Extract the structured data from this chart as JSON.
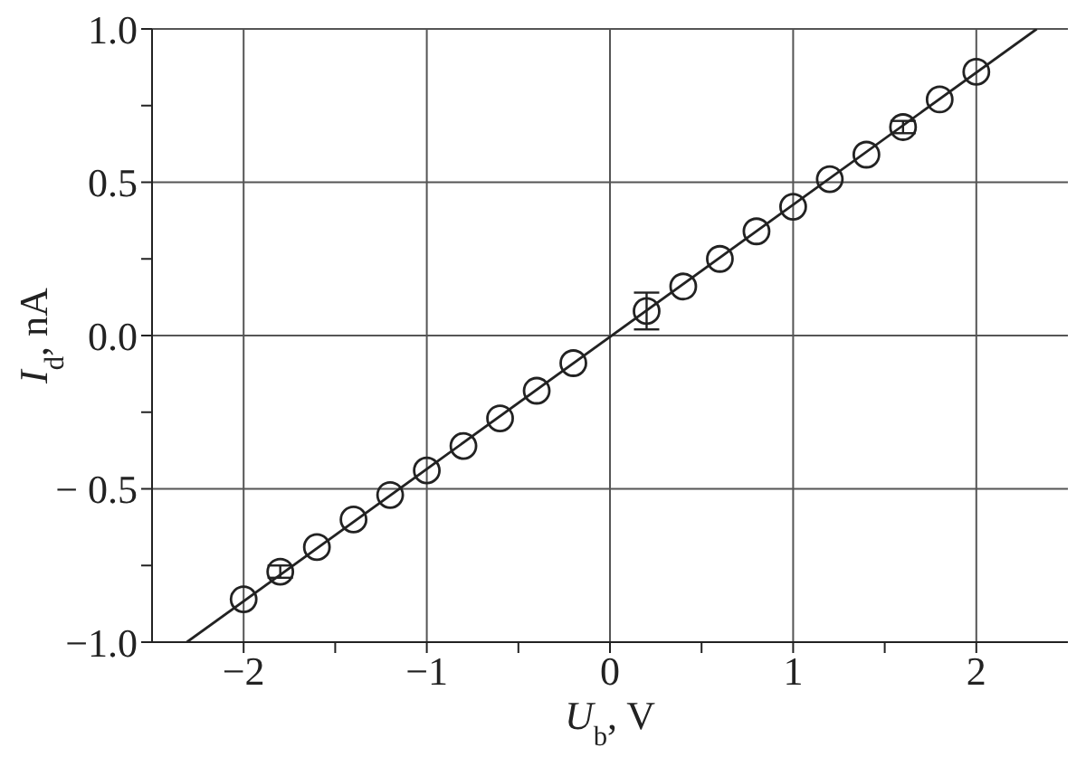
{
  "chart_data": {
    "type": "scatter",
    "xlabel": "U$_{b}$, V",
    "ylabel": "I$_{d}$, nA",
    "xlim": [
      -2.5,
      2.5
    ],
    "ylim": [
      -1.0,
      1.0
    ],
    "xticks": [
      {
        "value": -2,
        "label": "−2"
      },
      {
        "value": -1.5,
        "label": null
      },
      {
        "value": -1,
        "label": "−1"
      },
      {
        "value": -0.5,
        "label": null
      },
      0,
      {
        "value": 0.5,
        "label": null
      },
      1,
      {
        "value": 1.5,
        "label": null
      },
      2
    ],
    "yticks": [
      {
        "value": -1.0,
        "label": "−1.0"
      },
      {
        "value": -0.75,
        "label": null
      },
      {
        "value": -0.5,
        "label": "− 0.5"
      },
      {
        "value": -0.25,
        "label": null
      },
      {
        "value": 0,
        "label": "0.0"
      },
      {
        "value": 0.25,
        "label": null
      },
      {
        "value": 0.5,
        "label": "0.5"
      },
      {
        "value": 0.75,
        "label": null
      },
      {
        "value": 1.0,
        "label": "1.0"
      }
    ],
    "grid": true,
    "series": [
      {
        "color": "#222222",
        "marker": "circle",
        "x": [
          -2,
          -1.8,
          -1.6,
          -1.4,
          -1.2,
          -1,
          -0.8,
          -0.6,
          -0.4,
          -0.2,
          0.2,
          0.4,
          0.6,
          0.8,
          1.0,
          1.2,
          1.4,
          1.6,
          1.8,
          2.0
        ],
        "values": [
          -0.86,
          -0.77,
          -0.69,
          -0.6,
          -0.52,
          -0.44,
          -0.36,
          -0.27,
          -0.18,
          -0.09,
          0.08,
          0.16,
          0.25,
          0.34,
          0.42,
          0.51,
          0.59,
          0.68,
          0.77,
          0.86
        ],
        "errors": [
          null,
          0.02,
          null,
          null,
          null,
          null,
          null,
          null,
          null,
          null,
          0.06,
          null,
          null,
          null,
          null,
          null,
          null,
          0.02,
          null,
          null
        ]
      },
      {
        "type": "line",
        "color": "#222222",
        "x": [
          -2.31,
          2.33
        ],
        "values": [
          -1.0,
          1.0
        ]
      }
    ]
  }
}
